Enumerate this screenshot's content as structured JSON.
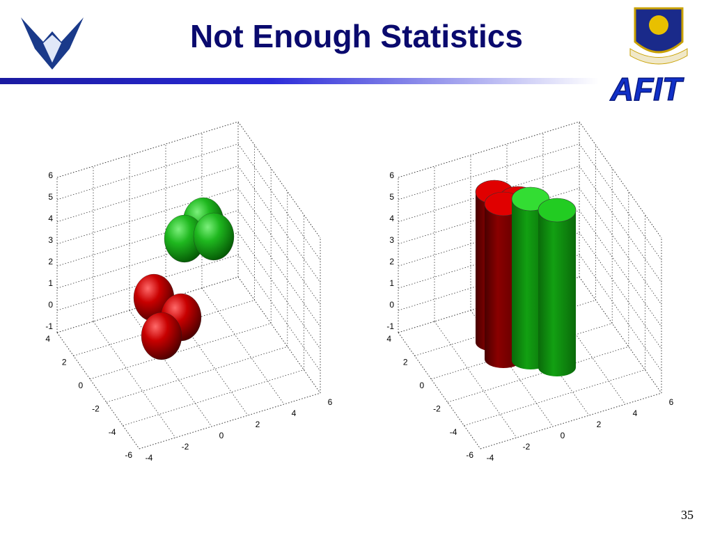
{
  "header": {
    "title": "Not Enough Statistics",
    "logo_text": "AFIT"
  },
  "figures": [
    {
      "z_ticks": [
        "6",
        "5",
        "4",
        "3",
        "2",
        "1",
        "0",
        "-1"
      ],
      "y_ticks": [
        "4",
        "2",
        "0",
        "-2",
        "-4",
        "-6"
      ],
      "x_ticks": [
        "-4",
        "-2",
        "0",
        "2",
        "4",
        "6"
      ]
    },
    {
      "z_ticks": [
        "6",
        "5",
        "4",
        "3",
        "2",
        "1",
        "0",
        "-1"
      ],
      "y_ticks": [
        "4",
        "2",
        "0",
        "-2",
        "-4",
        "-6"
      ],
      "x_ticks": [
        "-4",
        "-2",
        "0",
        "2",
        "4",
        "6"
      ]
    }
  ],
  "page_number": "35"
}
